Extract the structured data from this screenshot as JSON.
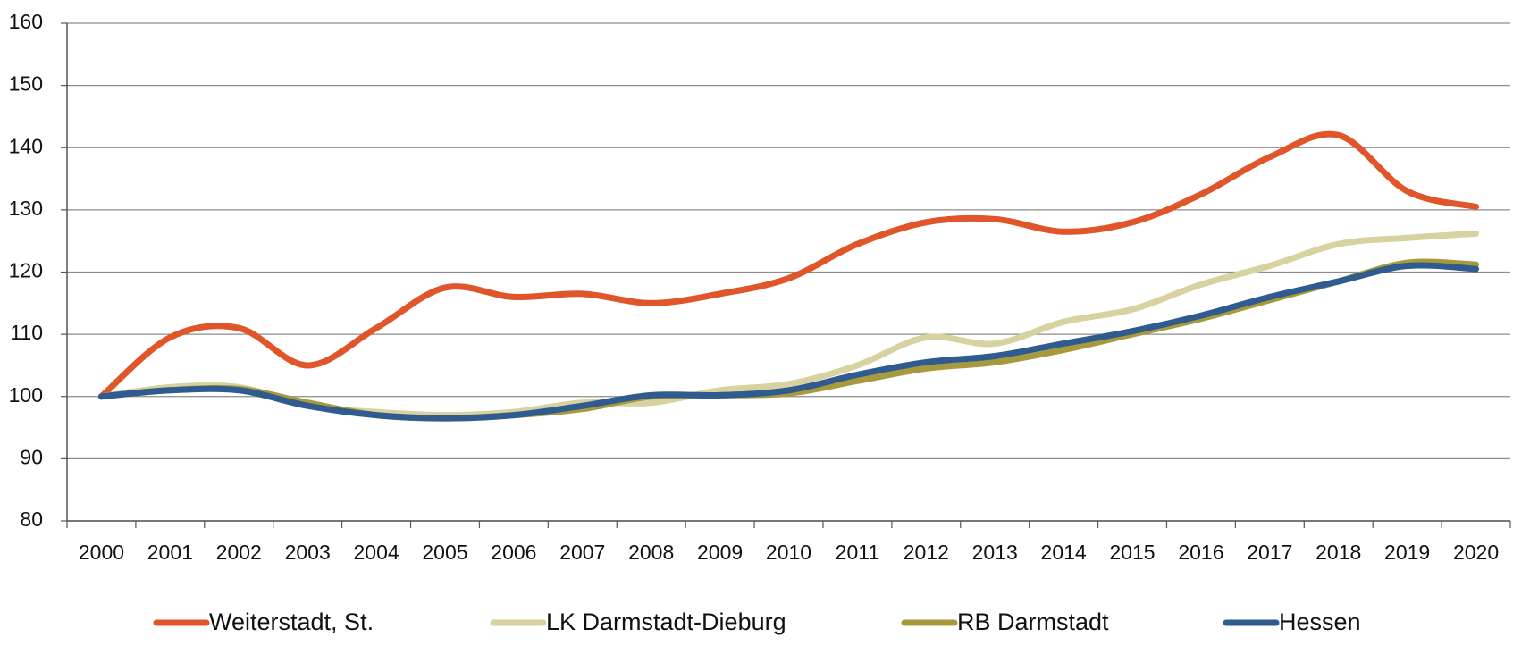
{
  "chart_data": {
    "type": "line",
    "categories": [
      "2000",
      "2001",
      "2002",
      "2003",
      "2004",
      "2005",
      "2006",
      "2007",
      "2008",
      "2009",
      "2010",
      "2011",
      "2012",
      "2013",
      "2014",
      "2015",
      "2016",
      "2017",
      "2018",
      "2019",
      "2020"
    ],
    "series": [
      {
        "name": "Weiterstadt, St.",
        "color": "#e0552a",
        "values": [
          100,
          109.5,
          111,
          105,
          111,
          117.5,
          116,
          116.5,
          115,
          116.5,
          119,
          124.5,
          128,
          128.5,
          126.5,
          128,
          132.5,
          138.5,
          142,
          133,
          130.5
        ]
      },
      {
        "name": "LK Darmstadt-Dieburg",
        "color": "#d8d2a0",
        "values": [
          100,
          101.5,
          101.5,
          98.5,
          97.5,
          97,
          97.5,
          99,
          99,
          101,
          102,
          105,
          109.5,
          108.5,
          112,
          114,
          118,
          121,
          124.5,
          125.5,
          126.2
        ]
      },
      {
        "name": "RB Darmstadt",
        "color": "#a89a3c",
        "values": [
          100,
          101,
          101.2,
          99,
          97,
          96.5,
          97,
          98,
          100,
          100.2,
          100.5,
          102.5,
          104.5,
          105.5,
          107.5,
          110,
          112.5,
          115.5,
          118.5,
          121.5,
          121.2
        ]
      },
      {
        "name": "Hessen",
        "color": "#2f5b8f",
        "values": [
          100,
          101,
          101,
          98.5,
          97,
          96.5,
          97,
          98.5,
          100.2,
          100.2,
          101,
          103.5,
          105.5,
          106.5,
          108.5,
          110.5,
          113,
          116,
          118.5,
          121,
          120.5
        ]
      }
    ],
    "ylim": [
      80,
      160
    ],
    "yticks": [
      80,
      90,
      100,
      110,
      120,
      130,
      140,
      150,
      160
    ],
    "grid": true,
    "legend": "bottom"
  }
}
